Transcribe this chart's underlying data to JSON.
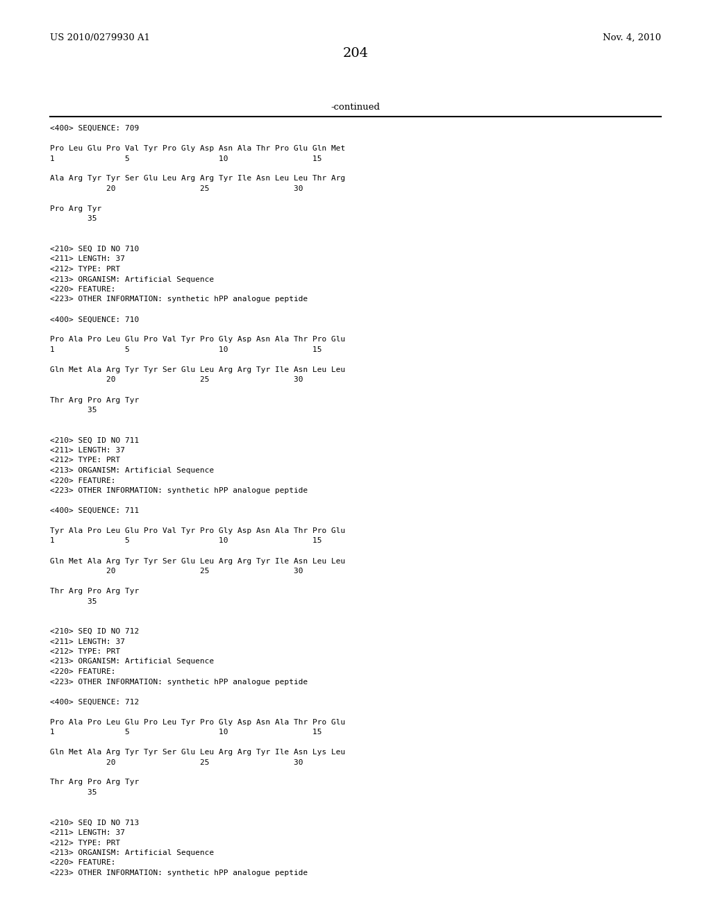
{
  "background_color": "#ffffff",
  "top_left_text": "US 2010/0279930 A1",
  "top_right_text": "Nov. 4, 2010",
  "page_number": "204",
  "continued_text": "-continued",
  "body_lines": [
    "<400> SEQUENCE: 709",
    "",
    "Pro Leu Glu Pro Val Tyr Pro Gly Asp Asn Ala Thr Pro Glu Gln Met",
    "1               5                   10                  15",
    "",
    "Ala Arg Tyr Tyr Ser Glu Leu Arg Arg Tyr Ile Asn Leu Leu Thr Arg",
    "            20                  25                  30",
    "",
    "Pro Arg Tyr",
    "        35",
    "",
    "",
    "<210> SEQ ID NO 710",
    "<211> LENGTH: 37",
    "<212> TYPE: PRT",
    "<213> ORGANISM: Artificial Sequence",
    "<220> FEATURE:",
    "<223> OTHER INFORMATION: synthetic hPP analogue peptide",
    "",
    "<400> SEQUENCE: 710",
    "",
    "Pro Ala Pro Leu Glu Pro Val Tyr Pro Gly Asp Asn Ala Thr Pro Glu",
    "1               5                   10                  15",
    "",
    "Gln Met Ala Arg Tyr Tyr Ser Glu Leu Arg Arg Tyr Ile Asn Leu Leu",
    "            20                  25                  30",
    "",
    "Thr Arg Pro Arg Tyr",
    "        35",
    "",
    "",
    "<210> SEQ ID NO 711",
    "<211> LENGTH: 37",
    "<212> TYPE: PRT",
    "<213> ORGANISM: Artificial Sequence",
    "<220> FEATURE:",
    "<223> OTHER INFORMATION: synthetic hPP analogue peptide",
    "",
    "<400> SEQUENCE: 711",
    "",
    "Tyr Ala Pro Leu Glu Pro Val Tyr Pro Gly Asp Asn Ala Thr Pro Glu",
    "1               5                   10                  15",
    "",
    "Gln Met Ala Arg Tyr Tyr Ser Glu Leu Arg Arg Tyr Ile Asn Leu Leu",
    "            20                  25                  30",
    "",
    "Thr Arg Pro Arg Tyr",
    "        35",
    "",
    "",
    "<210> SEQ ID NO 712",
    "<211> LENGTH: 37",
    "<212> TYPE: PRT",
    "<213> ORGANISM: Artificial Sequence",
    "<220> FEATURE:",
    "<223> OTHER INFORMATION: synthetic hPP analogue peptide",
    "",
    "<400> SEQUENCE: 712",
    "",
    "Pro Ala Pro Leu Glu Pro Leu Tyr Pro Gly Asp Asn Ala Thr Pro Glu",
    "1               5                   10                  15",
    "",
    "Gln Met Ala Arg Tyr Tyr Ser Glu Leu Arg Arg Tyr Ile Asn Lys Leu",
    "            20                  25                  30",
    "",
    "Thr Arg Pro Arg Tyr",
    "        35",
    "",
    "",
    "<210> SEQ ID NO 713",
    "<211> LENGTH: 37",
    "<212> TYPE: PRT",
    "<213> ORGANISM: Artificial Sequence",
    "<220> FEATURE:",
    "<223> OTHER INFORMATION: synthetic hPP analogue peptide"
  ]
}
